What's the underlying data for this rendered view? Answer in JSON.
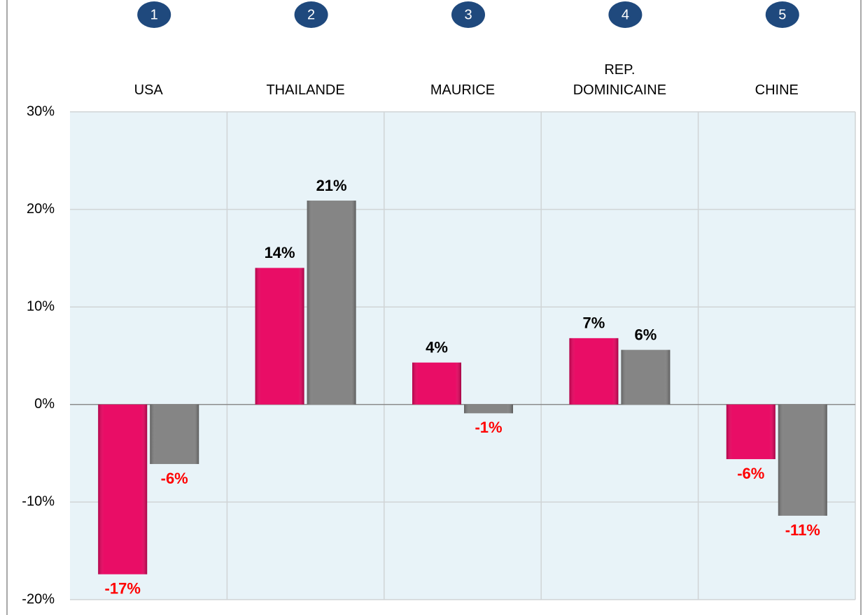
{
  "chart_data": {
    "type": "bar",
    "ranks": [
      "1",
      "2",
      "3",
      "4",
      "5"
    ],
    "categories": [
      "USA",
      "THAILANDE",
      "MAURICE",
      "REP. DOMINICAINE",
      "CHINE"
    ],
    "series": [
      {
        "color": "#e8005e",
        "values": [
          -17.4,
          14.0,
          4.3,
          6.8,
          -5.6
        ],
        "value_labels": [
          "-17%",
          "14%",
          "4%",
          "7%",
          "-6%"
        ]
      },
      {
        "color": "#7f7f7f",
        "values": [
          -6.1,
          20.9,
          -0.9,
          5.6,
          -11.4
        ],
        "value_labels": [
          "-6%",
          "21%",
          "-1%",
          "6%",
          "-11%"
        ]
      }
    ],
    "ylim": [
      -20,
      30
    ],
    "yticks": [
      {
        "value": -20,
        "label": "-20%"
      },
      {
        "value": -10,
        "label": "-10%"
      },
      {
        "value": 0,
        "label": "0%"
      },
      {
        "value": 10,
        "label": "10%"
      },
      {
        "value": 20,
        "label": "20%"
      },
      {
        "value": 30,
        "label": "30%"
      }
    ],
    "grid": true,
    "positive_label_color": "#000000",
    "negative_label_color": "#ff0000"
  }
}
